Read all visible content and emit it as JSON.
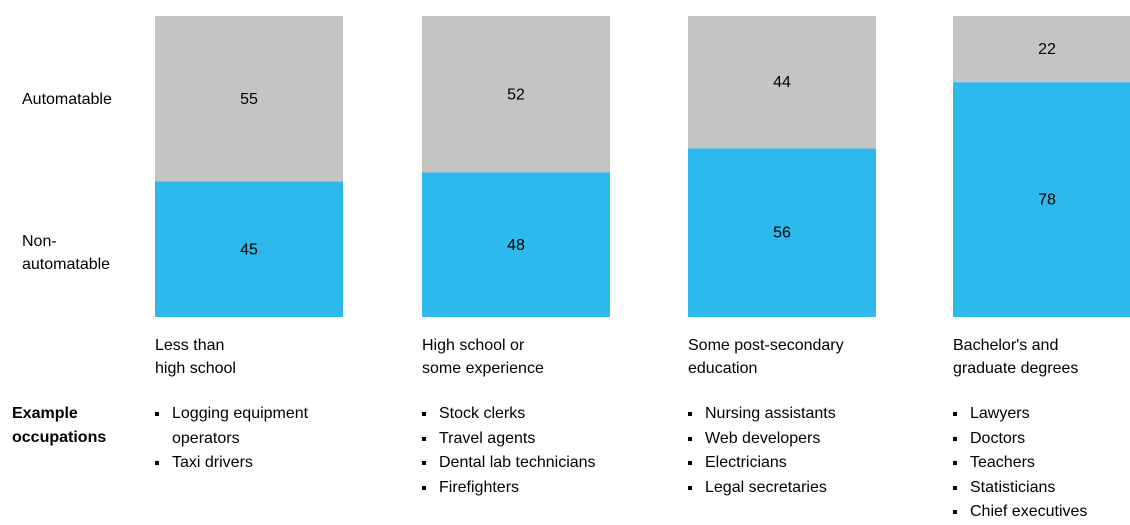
{
  "row_labels": {
    "automatable": "Automatable",
    "non_automatable": "Non-\nautomatable"
  },
  "occupations_title": "Example\noccupations",
  "colors": {
    "automatable": "#c4c4c4",
    "non_automatable": "#2db9ec"
  },
  "chart_data": {
    "type": "bar",
    "stacked": true,
    "normalized_to": 100,
    "categories": [
      "Less than\nhigh school",
      "High school or\nsome experience",
      "Some post-secondary\neducation",
      "Bachelor's and\ngraduate degrees"
    ],
    "series": [
      {
        "name": "Non-automatable",
        "values": [
          45,
          48,
          56,
          78
        ]
      },
      {
        "name": "Automatable",
        "values": [
          55,
          52,
          44,
          22
        ]
      }
    ],
    "ylim": [
      0,
      100
    ],
    "grid": false
  },
  "occupations": [
    [
      "Logging equipment\noperators",
      "Taxi drivers"
    ],
    [
      "Stock clerks",
      "Travel agents",
      "Dental lab technicians",
      "Firefighters"
    ],
    [
      "Nursing assistants",
      "Web developers",
      "Electricians",
      "Legal secretaries"
    ],
    [
      "Lawyers",
      "Doctors",
      "Teachers",
      "Statisticians",
      "Chief executives"
    ]
  ]
}
